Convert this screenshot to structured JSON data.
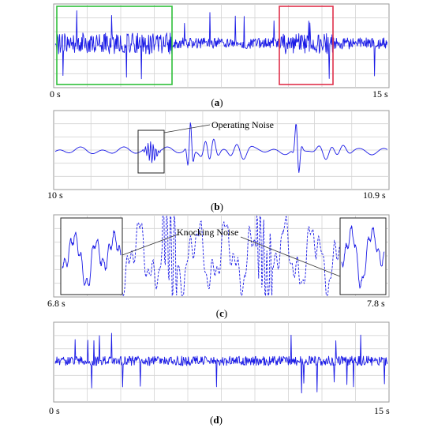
{
  "panels": [
    {
      "id": "a",
      "caption_letter": "a",
      "t_start": "0 s",
      "t_end": "15 s"
    },
    {
      "id": "b",
      "caption_letter": "b",
      "t_start": "10 s",
      "t_end": "10.9 s",
      "annotation": "Operating Noise"
    },
    {
      "id": "c",
      "caption_letter": "c",
      "t_start": "6.8 s",
      "t_end": "7.8 s",
      "annotation": "Knocking Noise"
    },
    {
      "id": "d",
      "caption_letter": "d",
      "t_start": "0 s",
      "t_end": "15 s"
    }
  ],
  "caption_paren_open": "(",
  "caption_paren_close": ")",
  "colors": {
    "signal": "#1a1ae6",
    "highlight_green": "#2fbf3a",
    "highlight_red": "#e0304a",
    "inset_border": "#222222",
    "grid": "#d4d4d4"
  }
}
